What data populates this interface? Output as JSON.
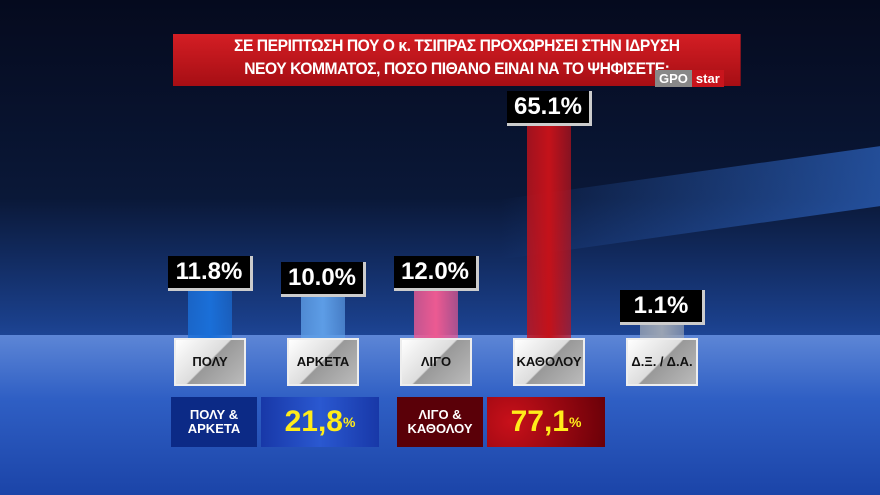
{
  "chart_data": {
    "type": "bar",
    "title": "ΣΕ ΠΕΡΙΠΤΩΣΗ ΠΟΥ Ο κ. ΤΣΙΠΡΑΣ ΠΡΟΧΩΡΗΣΕΙ ΣΤΗΝ ΙΔΡΥΣΗ ΝΕΟΥ ΚΟΜΜΑΤΟΣ, ΠΟΣΟ ΠΙΘΑΝΟ ΕΙΝΑΙ ΝΑ ΤΟ ΨΗΦΙΣΕΤΕ;",
    "title_lines": [
      "ΣΕ ΠΕΡΙΠΤΩΣΗ ΠΟΥ Ο κ. ΤΣΙΠΡΑΣ ΠΡΟΧΩΡΗΣΕΙ ΣΤΗΝ ΙΔΡΥΣΗ",
      "ΝΕΟΥ ΚΟΜΜΑΤΟΣ, ΠΟΣΟ ΠΙΘΑΝΟ ΕΙΝΑΙ ΝΑ ΤΟ ΨΗΦΙΣΕΤΕ;"
    ],
    "categories": [
      "ΠΟΛΥ",
      "ΑΡΚΕΤΑ",
      "ΛΙΓΟ",
      "ΚΑΘΟΛΟΥ",
      "Δ.Ξ. / Δ.Α."
    ],
    "values": [
      11.8,
      10.0,
      12.0,
      65.1,
      1.1
    ],
    "value_labels": [
      "11.8%",
      "10.0%",
      "12.0%",
      "65.1%",
      "1.1%"
    ],
    "colors": [
      "#1a6fd8",
      "#5d9de6",
      "#ec5a92",
      "#c4121a",
      "#9aa4b4"
    ],
    "ylim": [
      0,
      70
    ],
    "grid": false
  },
  "summary": [
    {
      "label_lines": [
        "ΠΟΛΥ &",
        "ΑΡΚΕΤΑ"
      ],
      "value": "21,8",
      "unit": "%"
    },
    {
      "label_lines": [
        "ΛΙΓΟ &",
        "ΚΑΘΟΛΟΥ"
      ],
      "value": "77,1",
      "unit": "%"
    }
  ],
  "logo": {
    "gpo": "GPO",
    "star": "star"
  }
}
